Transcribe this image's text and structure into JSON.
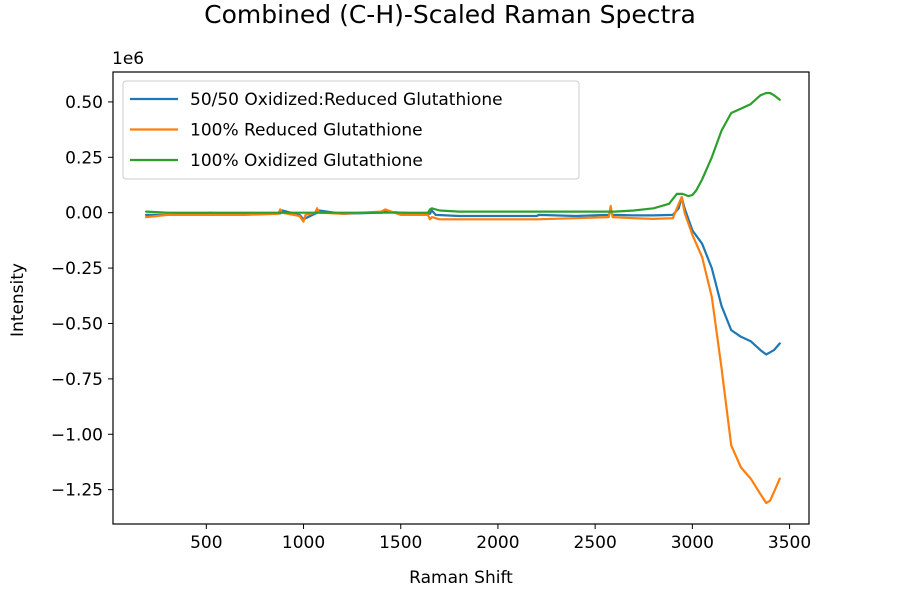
{
  "chart_data": {
    "type": "line",
    "title": "Combined (C-H)-Scaled Raman Spectra",
    "xlabel": "Raman Shift",
    "ylabel": "Intensity",
    "y_scale_label": "1e6",
    "xlim": [
      20,
      3600
    ],
    "ylim": [
      -1.405,
      0.635
    ],
    "x_ticks": [
      500,
      1000,
      1500,
      2000,
      2500,
      3000,
      3500
    ],
    "x_tick_labels": [
      "500",
      "1000",
      "1500",
      "2000",
      "2500",
      "3000",
      "3500"
    ],
    "y_ticks": [
      0.5,
      0.25,
      0.0,
      -0.25,
      -0.5,
      -0.75,
      -1.0,
      -1.25
    ],
    "y_tick_labels": [
      "0.50",
      "0.25",
      "0.00",
      "−0.25",
      "−0.50",
      "−0.75",
      "−1.00",
      "−1.25"
    ],
    "grid": false,
    "legend_position": "upper-left",
    "series": [
      {
        "name": "50/50 Oxidized:Reduced Glutathione",
        "color": "#1f77b4",
        "x": [
          190,
          300,
          500,
          520,
          600,
          700,
          880,
          890,
          980,
          1000,
          1070,
          1080,
          1200,
          1400,
          1410,
          1600,
          1650,
          1660,
          1680,
          1800,
          2000,
          2200,
          2210,
          2400,
          2570,
          2580,
          2590,
          2700,
          2800,
          2900,
          2930,
          2945,
          2960,
          3000,
          3050,
          3100,
          3150,
          3200,
          3250,
          3300,
          3350,
          3380,
          3400,
          3420,
          3450
        ],
        "y": [
          -0.01,
          -0.01,
          -0.005,
          0.0,
          -0.008,
          -0.005,
          -0.003,
          0.01,
          -0.01,
          -0.03,
          0.0,
          0.01,
          -0.005,
          0.0,
          0.005,
          -0.005,
          -0.005,
          0.01,
          -0.01,
          -0.015,
          -0.015,
          -0.015,
          -0.01,
          -0.015,
          -0.01,
          0.01,
          -0.01,
          -0.012,
          -0.012,
          -0.01,
          0.02,
          0.07,
          0.02,
          -0.08,
          -0.14,
          -0.25,
          -0.42,
          -0.53,
          -0.56,
          -0.58,
          -0.62,
          -0.64,
          -0.63,
          -0.62,
          -0.59
        ]
      },
      {
        "name": "100% Reduced Glutathione",
        "color": "#ff7f0e",
        "x": [
          190,
          300,
          500,
          600,
          700,
          870,
          880,
          890,
          980,
          1000,
          1010,
          1060,
          1070,
          1080,
          1200,
          1400,
          1420,
          1500,
          1640,
          1650,
          1660,
          1700,
          1800,
          2000,
          2200,
          2400,
          2570,
          2580,
          2590,
          2700,
          2800,
          2900,
          2930,
          2945,
          2960,
          3000,
          3050,
          3100,
          3150,
          3200,
          3250,
          3300,
          3350,
          3380,
          3400,
          3420,
          3450
        ],
        "y": [
          -0.02,
          -0.01,
          -0.01,
          -0.01,
          -0.01,
          -0.005,
          0.015,
          0.0,
          -0.015,
          -0.04,
          -0.01,
          0.0,
          0.02,
          0.0,
          -0.005,
          0.005,
          0.015,
          -0.01,
          -0.01,
          -0.03,
          -0.02,
          -0.03,
          -0.03,
          -0.03,
          -0.03,
          -0.025,
          -0.02,
          0.03,
          -0.02,
          -0.025,
          -0.028,
          -0.025,
          0.04,
          0.07,
          0.0,
          -0.1,
          -0.2,
          -0.38,
          -0.7,
          -1.05,
          -1.15,
          -1.2,
          -1.27,
          -1.31,
          -1.3,
          -1.26,
          -1.2
        ]
      },
      {
        "name": "100% Oxidized Glutathione",
        "color": "#2ca02c",
        "x": [
          190,
          300,
          500,
          700,
          1000,
          1400,
          1640,
          1650,
          1660,
          1700,
          1800,
          2000,
          2200,
          2400,
          2600,
          2700,
          2800,
          2880,
          2920,
          2950,
          2980,
          3000,
          3020,
          3050,
          3100,
          3150,
          3200,
          3250,
          3300,
          3350,
          3380,
          3400,
          3420,
          3450
        ],
        "y": [
          0.005,
          0.0,
          0.0,
          0.0,
          0.0,
          0.0,
          0.0,
          0.015,
          0.02,
          0.01,
          0.005,
          0.005,
          0.005,
          0.005,
          0.005,
          0.01,
          0.02,
          0.04,
          0.085,
          0.085,
          0.075,
          0.08,
          0.1,
          0.15,
          0.25,
          0.37,
          0.45,
          0.47,
          0.49,
          0.53,
          0.54,
          0.54,
          0.53,
          0.51
        ]
      }
    ]
  }
}
